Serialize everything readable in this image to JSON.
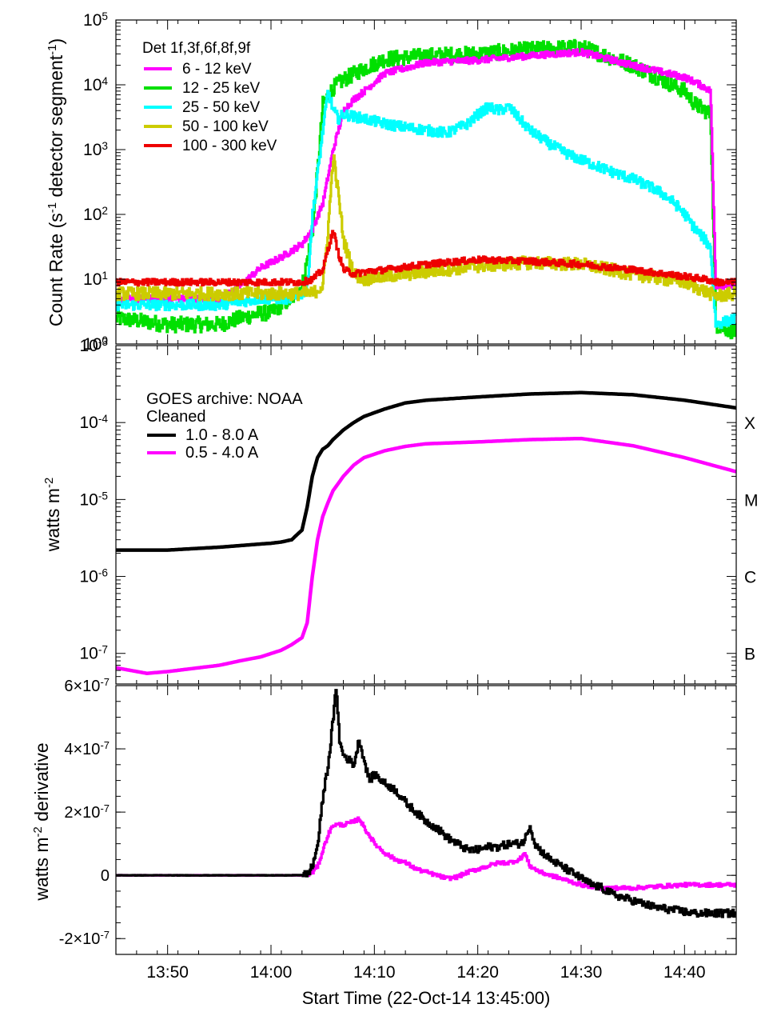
{
  "chart_data": [
    {
      "type": "line",
      "panel": "rhessi-count-rates",
      "ylabel": "Count Rate (s⁻¹ detector segment⁻¹)",
      "yscale": "log",
      "ylim": [
        1,
        100000
      ],
      "x_range_minutes": [
        0,
        60
      ],
      "ytick_labels": [
        {
          "base": "10",
          "exp": "0",
          "value": 1
        },
        {
          "base": "10",
          "exp": "1",
          "value": 10
        },
        {
          "base": "10",
          "exp": "2",
          "value": 100
        },
        {
          "base": "10",
          "exp": "3",
          "value": 1000
        },
        {
          "base": "10",
          "exp": "4",
          "value": 10000
        },
        {
          "base": "10",
          "exp": "5",
          "value": 100000
        }
      ],
      "legend_title": "Det 1f,3f,6f,8f,9f",
      "legend_position": "top-left",
      "series": [
        {
          "name": "6 - 12 keV",
          "color": "#ff00ff",
          "x": [
            0,
            5,
            10,
            12,
            14,
            16,
            18,
            19,
            20,
            21,
            22,
            23,
            24,
            26,
            30,
            35,
            40,
            45,
            50,
            55,
            56,
            57,
            57.5,
            58,
            60
          ],
          "values": [
            5,
            5,
            5,
            8,
            15,
            22,
            35,
            60,
            150,
            1000,
            4000,
            6000,
            8000,
            15000,
            22000,
            24000,
            28000,
            32000,
            20000,
            13000,
            11000,
            9000,
            8000,
            8,
            8
          ]
        },
        {
          "name": "12 - 25 keV",
          "color": "#00e000",
          "x": [
            0,
            5,
            10,
            12,
            14,
            15,
            16,
            17,
            18,
            18.5,
            19,
            19.5,
            20,
            21,
            22,
            24,
            26,
            30,
            35,
            40,
            45,
            50,
            55,
            56,
            57,
            57.5,
            58,
            60
          ],
          "values": [
            2.5,
            2,
            2,
            2.5,
            3,
            3,
            4,
            5,
            8,
            20,
            60,
            500,
            5000,
            9000,
            12000,
            18000,
            25000,
            28000,
            30000,
            35000,
            38000,
            20000,
            8000,
            5000,
            4000,
            3500,
            2,
            1.5
          ]
        },
        {
          "name": "25 - 50 keV",
          "color": "#00ffff",
          "x": [
            0,
            5,
            10,
            14,
            16,
            17,
            18,
            18.5,
            19,
            20,
            20.5,
            21,
            21.5,
            22,
            24,
            26,
            28,
            30,
            32,
            34,
            35,
            36,
            37,
            38,
            39,
            40,
            42,
            44,
            46,
            48,
            50,
            52,
            53,
            54,
            55,
            56,
            57,
            57.5,
            58,
            60
          ],
          "values": [
            4,
            4,
            4,
            5,
            5,
            5,
            6,
            8,
            100,
            2000,
            8000,
            4000,
            3000,
            3500,
            3000,
            2500,
            2200,
            2000,
            1800,
            2500,
            3500,
            4500,
            4000,
            4500,
            3000,
            2000,
            1200,
            800,
            600,
            450,
            350,
            250,
            200,
            150,
            100,
            60,
            40,
            30,
            2,
            2.5
          ]
        },
        {
          "name": "50 - 100 keV",
          "color": "#cccc00",
          "x": [
            0,
            10,
            18,
            19,
            20,
            20.5,
            21,
            21.5,
            22,
            23,
            24,
            26,
            30,
            35,
            40,
            45,
            50,
            55,
            58,
            60
          ],
          "values": [
            6,
            6,
            6,
            6,
            8,
            60,
            800,
            200,
            40,
            12,
            10,
            11,
            13,
            16,
            18,
            17,
            12,
            9,
            5.5,
            6
          ]
        },
        {
          "name": "100 - 300 keV",
          "color": "#ee0000",
          "x": [
            0,
            10,
            17,
            18,
            19,
            20,
            20.5,
            21,
            21.5,
            22,
            23,
            24,
            26,
            30,
            35,
            40,
            45,
            50,
            55,
            57,
            58,
            60
          ],
          "values": [
            9,
            9,
            9,
            9,
            10,
            14,
            30,
            55,
            25,
            14,
            12,
            13,
            14,
            17,
            20,
            19,
            17,
            14,
            11,
            10,
            9,
            9
          ]
        }
      ]
    },
    {
      "type": "line",
      "panel": "goes-flux",
      "ylabel": "watts m⁻²",
      "yscale": "log",
      "ylim": [
        4e-08,
        0.001
      ],
      "x_range_minutes": [
        0,
        60
      ],
      "ytick_labels": [
        {
          "base": "10",
          "exp": "-7",
          "value": 1e-07
        },
        {
          "base": "10",
          "exp": "-6",
          "value": 1e-06
        },
        {
          "base": "10",
          "exp": "-5",
          "value": 1e-05
        },
        {
          "base": "10",
          "exp": "-4",
          "value": 0.0001
        },
        {
          "base": "10",
          "exp": "-3",
          "value": 0.001
        }
      ],
      "class_labels": [
        {
          "label": "X",
          "value": 0.0001
        },
        {
          "label": "M",
          "value": 1e-05
        },
        {
          "label": "C",
          "value": 1e-06
        },
        {
          "label": "B",
          "value": 1e-07
        }
      ],
      "legend_title": "GOES archive: NOAA",
      "legend_subtitle": "Cleaned",
      "legend_position": "top-left",
      "series": [
        {
          "name": "1.0 - 8.0 A",
          "color": "#000000",
          "x": [
            0,
            5,
            10,
            15,
            16,
            17,
            18,
            18.5,
            19,
            19.5,
            20,
            20.5,
            21,
            22,
            23,
            24,
            26,
            28,
            30,
            35,
            40,
            45,
            50,
            55,
            60
          ],
          "values": [
            2.2e-06,
            2.2e-06,
            2.4e-06,
            2.7e-06,
            2.8e-06,
            3e-06,
            4e-06,
            8e-06,
            2e-05,
            3.5e-05,
            4.5e-05,
            5e-05,
            6e-05,
            8e-05,
            0.0001,
            0.00012,
            0.00015,
            0.00018,
            0.000195,
            0.000215,
            0.000235,
            0.000245,
            0.00023,
            0.000195,
            0.000155
          ]
        },
        {
          "name": "0.5 - 4.0 A",
          "color": "#ff00ff",
          "x": [
            0,
            3,
            5,
            8,
            10,
            12,
            14,
            16,
            17,
            18,
            18.5,
            19,
            19.5,
            20,
            20.5,
            21,
            22,
            23,
            24,
            26,
            28,
            30,
            35,
            40,
            45,
            50,
            55,
            60
          ],
          "values": [
            6.5e-08,
            5.5e-08,
            5.8e-08,
            6.5e-08,
            7e-08,
            8e-08,
            9e-08,
            1.1e-07,
            1.3e-07,
            1.6e-07,
            2.5e-07,
            1e-06,
            3e-06,
            6e-06,
            9e-06,
            1.3e-05,
            2e-05,
            2.8e-05,
            3.5e-05,
            4.3e-05,
            4.9e-05,
            5.3e-05,
            5.6e-05,
            6e-05,
            6.2e-05,
            5e-05,
            3.5e-05,
            2.3e-05
          ]
        }
      ]
    },
    {
      "type": "line",
      "panel": "goes-derivative",
      "ylabel": "watts m⁻² derivative",
      "ylim": [
        -2.5e-07,
        6e-07
      ],
      "x_range_minutes": [
        0,
        60
      ],
      "ytick_labels": [
        {
          "mant": "6×10",
          "exp": "-7",
          "value": 6e-07
        },
        {
          "mant": "4×10",
          "exp": "-7",
          "value": 4e-07
        },
        {
          "mant": "2×10",
          "exp": "-7",
          "value": 2e-07
        },
        {
          "mant": "0",
          "exp": "",
          "value": 0
        },
        {
          "mant": "-2×10",
          "exp": "-7",
          "value": -2e-07
        }
      ],
      "xtick_labels": [
        {
          "label": "13:50",
          "minute": 5
        },
        {
          "label": "14:00",
          "minute": 15
        },
        {
          "label": "14:10",
          "minute": 25
        },
        {
          "label": "14:20",
          "minute": 35
        },
        {
          "label": "14:30",
          "minute": 45
        },
        {
          "label": "14:40",
          "minute": 55
        }
      ],
      "xlabel": "Start Time (22-Oct-14 13:45:00)",
      "series": [
        {
          "name": "1.0 - 8.0 A derivative",
          "color": "#000000",
          "x": [
            0,
            10,
            15,
            16,
            17,
            18,
            18.5,
            19,
            19.5,
            20,
            20.5,
            21,
            21.3,
            21.6,
            22,
            23,
            23.5,
            24,
            24.5,
            25,
            26,
            27,
            28,
            29,
            30,
            31,
            32,
            33,
            34,
            35,
            36,
            37,
            38,
            39,
            39.5,
            40,
            40.5,
            41,
            42,
            43,
            44,
            45,
            46,
            47,
            48,
            50,
            52,
            54,
            56,
            58,
            60
          ],
          "values": [
            0,
            0,
            0,
            0,
            0,
            1e-09,
            5e-09,
            3e-08,
            1e-07,
            2.5e-07,
            3.5e-07,
            5e-07,
            6e-07,
            4.2e-07,
            3.8e-07,
            3.5e-07,
            4.3e-07,
            3.6e-07,
            3e-07,
            3.2e-07,
            2.9e-07,
            2.7e-07,
            2.3e-07,
            2e-07,
            1.7e-07,
            1.5e-07,
            1.2e-07,
            1e-07,
            8e-08,
            8e-08,
            9e-08,
            9e-08,
            1e-07,
            1e-07,
            1.1e-07,
            1.6e-07,
            1e-07,
            8e-08,
            5e-08,
            3e-08,
            1e-08,
            -1e-08,
            -3e-08,
            -4e-08,
            -6e-08,
            -8e-08,
            -1e-07,
            -1.1e-07,
            -1.2e-07,
            -1.2e-07,
            -1.2e-07
          ]
        },
        {
          "name": "0.5 - 4.0 A derivative",
          "color": "#ff00ff",
          "x": [
            0,
            10,
            15,
            17,
            18,
            18.5,
            19,
            19.5,
            20,
            20.5,
            21,
            22,
            23,
            23.5,
            24,
            25,
            26,
            27,
            28,
            29,
            30,
            31,
            32,
            33,
            34,
            35,
            36,
            37,
            38,
            39,
            39.5,
            40,
            41,
            42,
            43,
            45,
            47,
            50,
            55,
            60
          ],
          "values": [
            0,
            0,
            0,
            0,
            0,
            2e-09,
            1e-08,
            3e-08,
            8e-08,
            1.3e-07,
            1.6e-07,
            1.6e-07,
            1.7e-07,
            1.8e-07,
            1.5e-07,
            1e-07,
            7e-08,
            5e-08,
            4e-08,
            2e-08,
            1e-08,
            0.0,
            -1e-08,
            -5e-09,
            1e-08,
            2e-08,
            3e-08,
            4e-08,
            4e-08,
            5e-08,
            7e-08,
            3e-08,
            1e-08,
            0.0,
            -1e-08,
            -3e-08,
            -4e-08,
            -4e-08,
            -3e-08,
            -3e-08
          ]
        }
      ]
    }
  ]
}
